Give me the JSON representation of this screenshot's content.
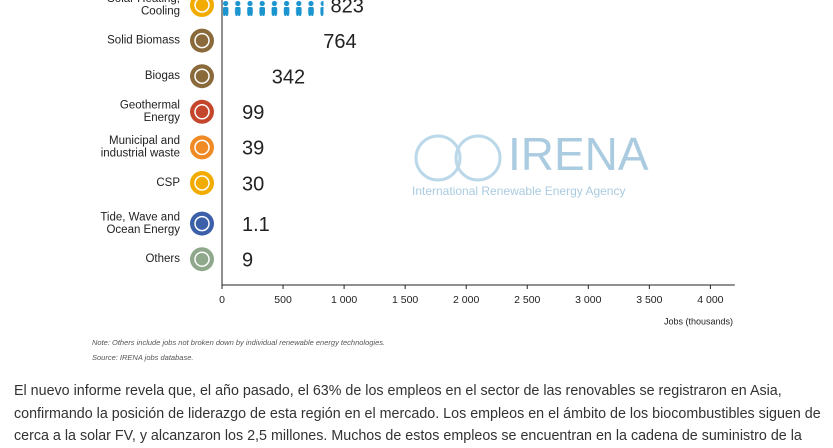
{
  "chart_data": {
    "type": "bar",
    "orientation": "horizontal",
    "categories": [
      [
        "Solar Heating,",
        "Cooling"
      ],
      [
        "Solid Biomass"
      ],
      [
        "Biogas"
      ],
      [
        "Geothermal",
        "Energy"
      ],
      [
        "Municipal and",
        "industrial waste"
      ],
      [
        "CSP"
      ],
      [
        "Tide, Wave and",
        "Ocean Energy"
      ],
      [
        "Others"
      ]
    ],
    "values": [
      823,
      764,
      342,
      99,
      39,
      30,
      1.1,
      9
    ],
    "color": "#1b95d0",
    "icon_colors": [
      "#f2ac00",
      "#8a6a3a",
      "#8a6a3a",
      "#c4462b",
      "#f08a24",
      "#f2ac00",
      "#3b5fa8",
      "#8fa88c"
    ],
    "xlim": [
      0,
      4200
    ],
    "xticks": [
      0,
      500,
      {
        "value": 1000,
        "label": "1 000"
      },
      {
        "value": 1500,
        "label": "1 500"
      },
      {
        "value": 2000,
        "label": "2 000"
      },
      {
        "value": 2500,
        "label": "2 500"
      },
      {
        "value": 3000,
        "label": "3 000"
      },
      {
        "value": 3500,
        "label": "3 500"
      },
      {
        "value": 4000,
        "label": "4 000"
      }
    ],
    "xlabel": "Jobs (thousands)",
    "note": "Note: Others include jobs not broken down by individual renewable energy technologies.",
    "source": "Source: IRENA jobs database.",
    "watermark": {
      "name": "IRENA",
      "subtitle": "International Renewable Energy Agency"
    }
  },
  "article": {
    "paragraph": "El nuevo informe revela que, el año pasado, el 63% de los empleos en el sector de las renovables se registraron en Asia, confirmando la posición de liderazgo de esta región en el mercado. Los empleos en el ámbito de los biocombustibles siguen de cerca a la solar FV, y alcanzaron los 2,5 millones. Muchos de estos empleos se encuentran en la cadena de suministro de la"
  }
}
